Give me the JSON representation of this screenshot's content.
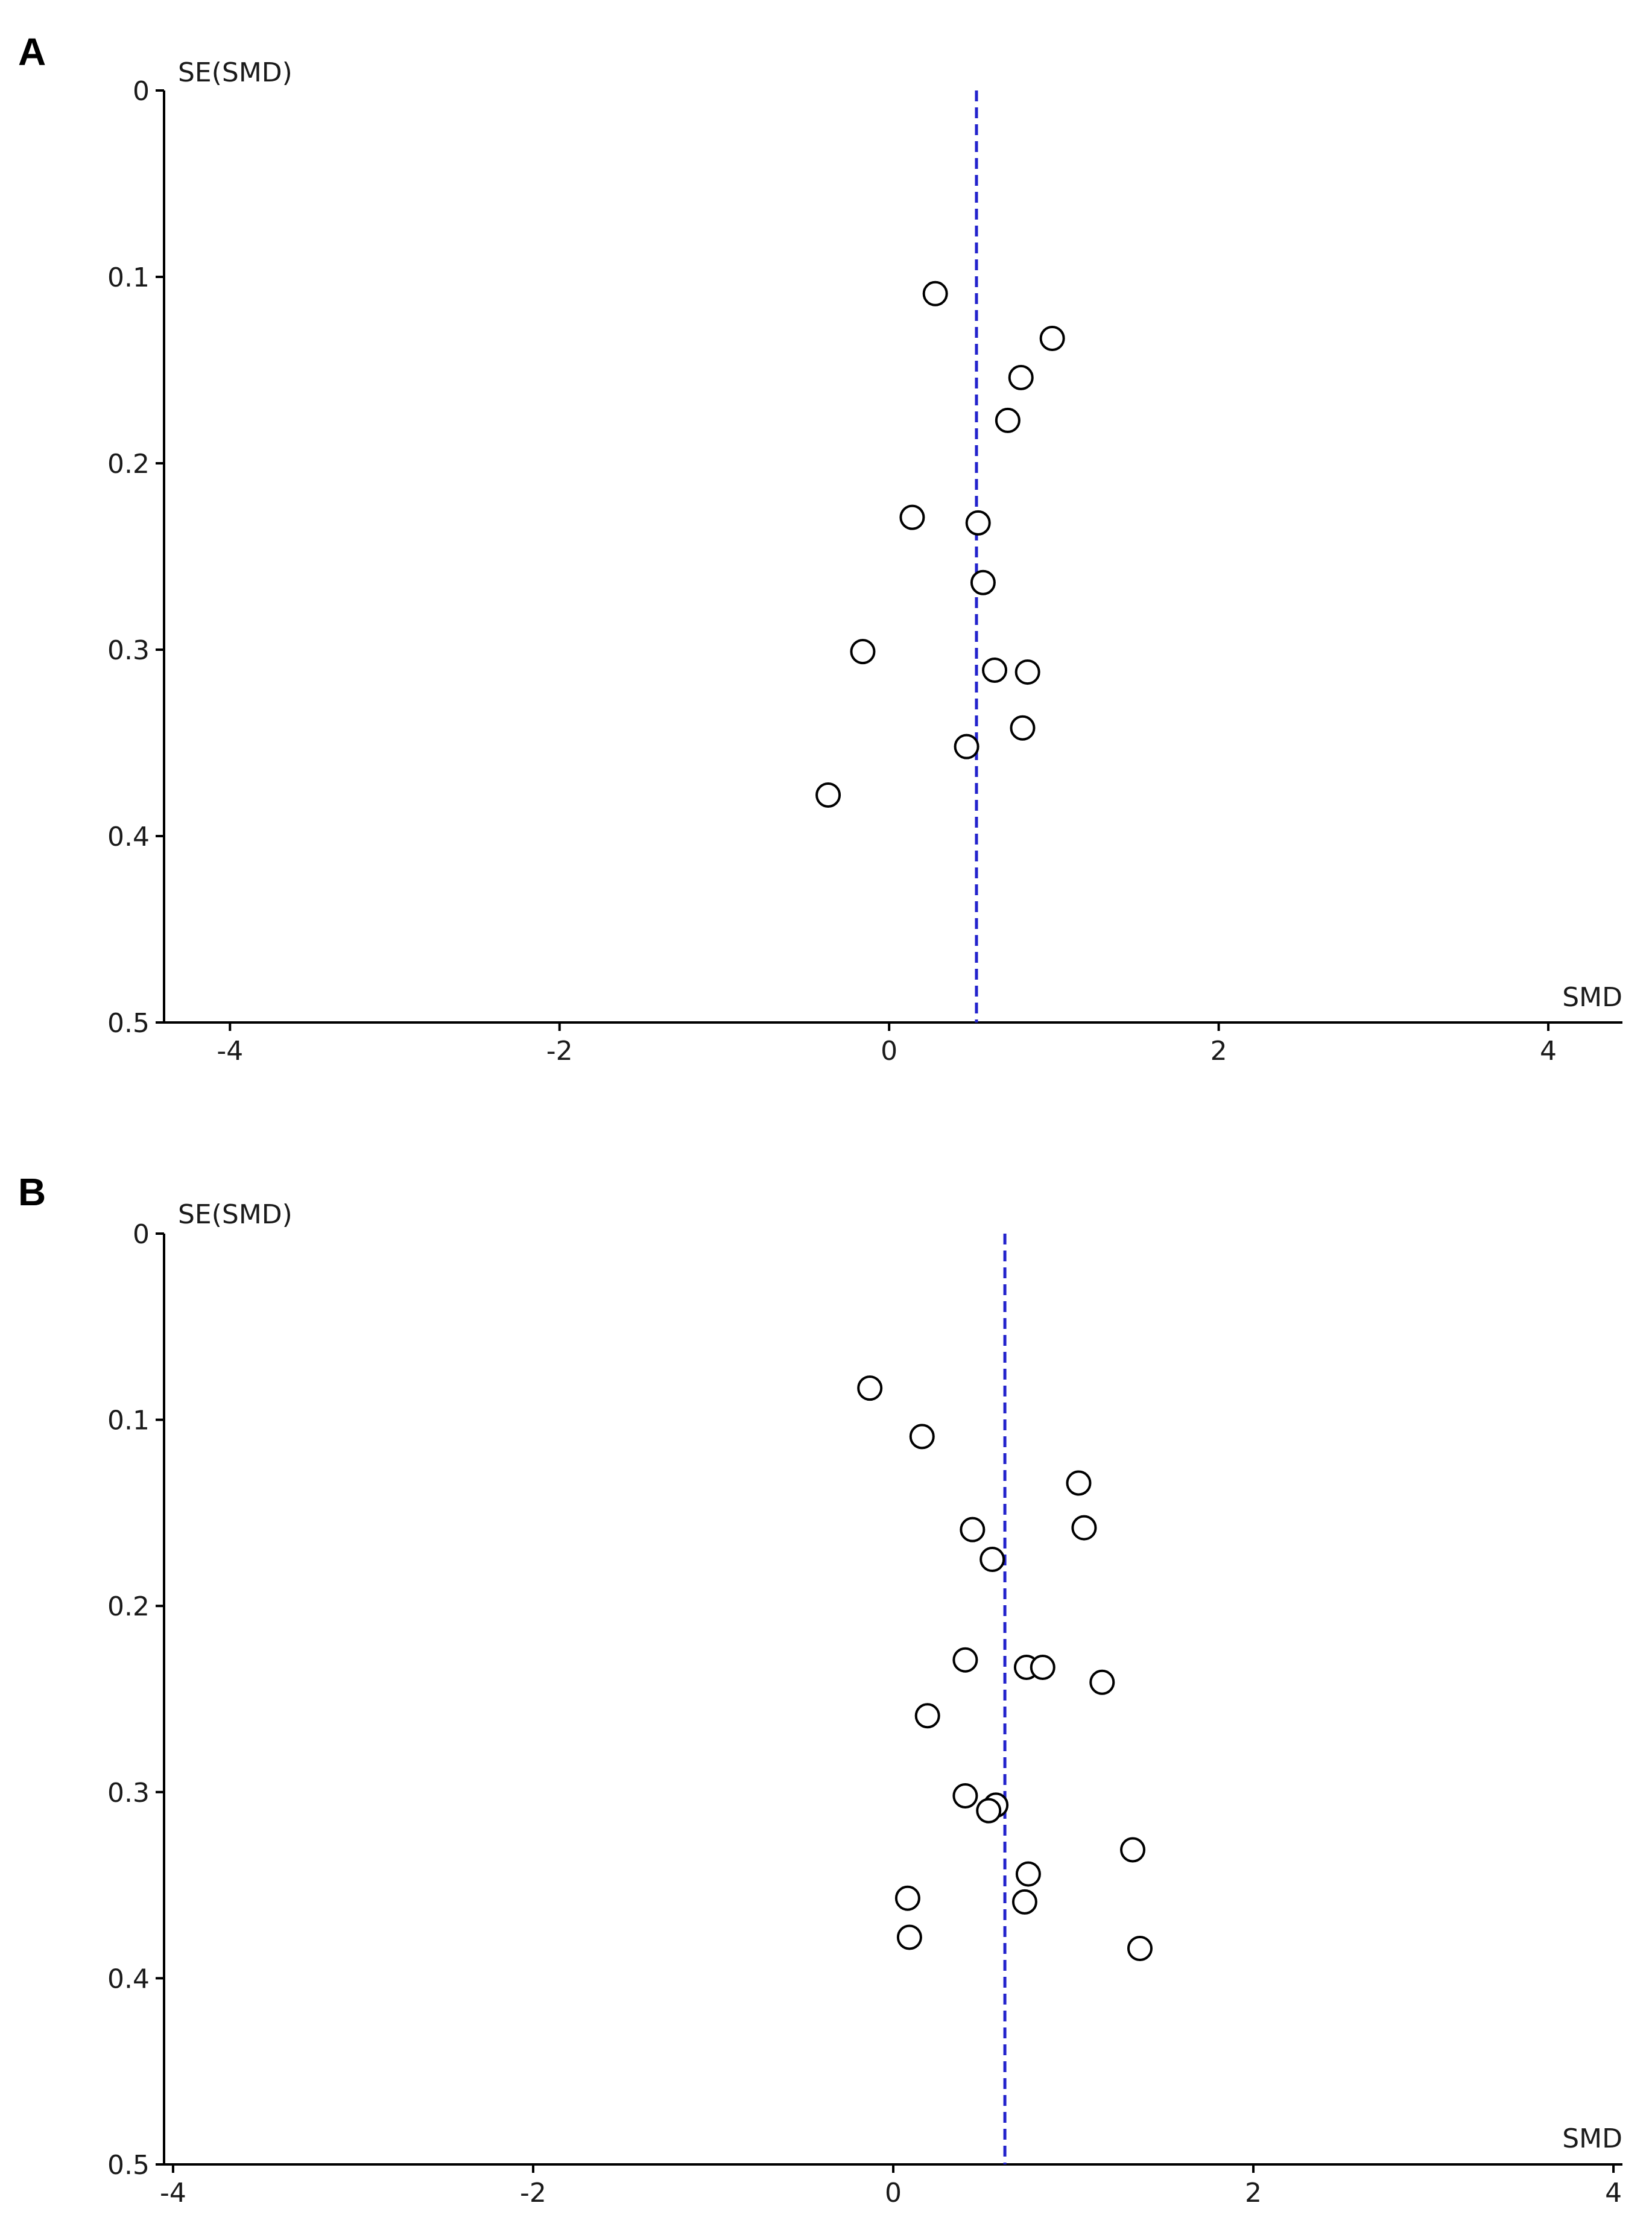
{
  "colors": {
    "axis": "#000000",
    "reference_line": "#2222cc",
    "point_stroke": "#000000",
    "point_fill": "#ffffff"
  },
  "chart_data": [
    {
      "panel": "A",
      "type": "scatter",
      "subtype": "funnel",
      "ylabel": "SE(SMD)",
      "xlabel": "SMD",
      "xlim": [
        -4.4,
        4.45
      ],
      "ylim": [
        0,
        0.5
      ],
      "y_inverted": true,
      "xticks": [
        -4,
        -2,
        0,
        2,
        4
      ],
      "xtick_labels": [
        "-4",
        "-2",
        "0",
        "2",
        "4"
      ],
      "yticks": [
        0,
        0.1,
        0.2,
        0.3,
        0.4,
        0.5
      ],
      "ytick_labels": [
        "0",
        "0.1",
        "0.2",
        "0.3",
        "0.4",
        "0.5"
      ],
      "reference_line_x": 0.53,
      "points": [
        {
          "x": 0.28,
          "y": 0.109
        },
        {
          "x": 0.99,
          "y": 0.133
        },
        {
          "x": 0.8,
          "y": 0.154
        },
        {
          "x": 0.72,
          "y": 0.177
        },
        {
          "x": 0.14,
          "y": 0.229
        },
        {
          "x": 0.54,
          "y": 0.232
        },
        {
          "x": 0.57,
          "y": 0.264
        },
        {
          "x": -0.16,
          "y": 0.301
        },
        {
          "x": 0.64,
          "y": 0.311
        },
        {
          "x": 0.84,
          "y": 0.312
        },
        {
          "x": 0.81,
          "y": 0.342
        },
        {
          "x": 0.47,
          "y": 0.352
        },
        {
          "x": -0.37,
          "y": 0.378
        }
      ]
    },
    {
      "panel": "B",
      "type": "scatter",
      "subtype": "funnel",
      "ylabel": "SE(SMD)",
      "xlabel": "SMD",
      "xlim": [
        -4.05,
        4.05
      ],
      "ylim": [
        0,
        0.5
      ],
      "y_inverted": true,
      "xticks": [
        -4,
        -2,
        0,
        2,
        4
      ],
      "xtick_labels": [
        "-4",
        "-2",
        "0",
        "2",
        "4"
      ],
      "yticks": [
        0,
        0.1,
        0.2,
        0.3,
        0.4,
        0.5
      ],
      "ytick_labels": [
        "0",
        "0.1",
        "0.2",
        "0.3",
        "0.4",
        "0.5"
      ],
      "reference_line_x": 0.62,
      "points": [
        {
          "x": -0.13,
          "y": 0.083
        },
        {
          "x": 0.16,
          "y": 0.109
        },
        {
          "x": 1.03,
          "y": 0.134
        },
        {
          "x": 0.44,
          "y": 0.159
        },
        {
          "x": 1.06,
          "y": 0.158
        },
        {
          "x": 0.55,
          "y": 0.175
        },
        {
          "x": 0.4,
          "y": 0.229
        },
        {
          "x": 0.74,
          "y": 0.233
        },
        {
          "x": 0.83,
          "y": 0.233
        },
        {
          "x": 1.16,
          "y": 0.241
        },
        {
          "x": 0.19,
          "y": 0.259
        },
        {
          "x": 0.4,
          "y": 0.302
        },
        {
          "x": 0.57,
          "y": 0.307
        },
        {
          "x": 0.53,
          "y": 0.31
        },
        {
          "x": 1.33,
          "y": 0.331
        },
        {
          "x": 0.75,
          "y": 0.344
        },
        {
          "x": 0.08,
          "y": 0.357
        },
        {
          "x": 0.73,
          "y": 0.359
        },
        {
          "x": 0.09,
          "y": 0.378
        },
        {
          "x": 1.37,
          "y": 0.384
        }
      ]
    }
  ]
}
